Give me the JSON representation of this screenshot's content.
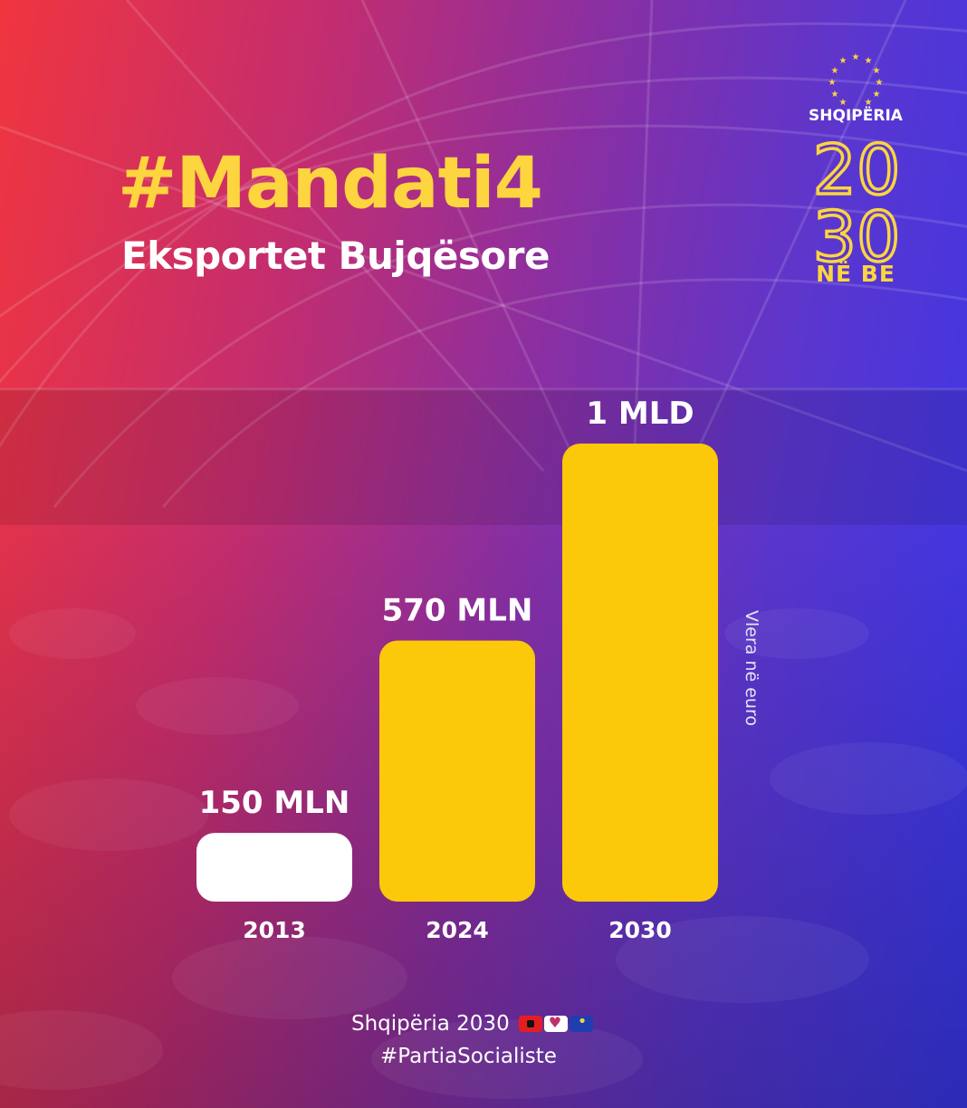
{
  "header": {
    "title": "#Mandati4",
    "subtitle": "Eksportet Bujqësore"
  },
  "logo": {
    "brand": "SHQIPËRIA",
    "number_top": "20",
    "number_bottom": "30",
    "tag": "NË BE"
  },
  "chart_data": {
    "type": "bar",
    "title": "Eksportet Bujqësore",
    "categories": [
      "2013",
      "2024",
      "2030"
    ],
    "values": [
      150,
      570,
      1000
    ],
    "value_labels": [
      "150 MLN",
      "570 MLN",
      "1 MLD"
    ],
    "ylabel": "Vlera në euro",
    "ylim": [
      0,
      1000
    ],
    "grid": false,
    "legend": "none",
    "colors": [
      "#ffffff",
      "#fcc80a",
      "#fcc80a"
    ]
  },
  "footer": {
    "line1": "Shqipëria 2030",
    "line2": "#PartiaSocialiste",
    "emoji": [
      "albania-flag-icon",
      "heart-hands-icon",
      "eu-flag-icon"
    ]
  },
  "theme": {
    "accent": "#fcd53f",
    "bar": "#fcc80a",
    "bg_left": "#f0353f",
    "bg_right": "#3737ea"
  }
}
